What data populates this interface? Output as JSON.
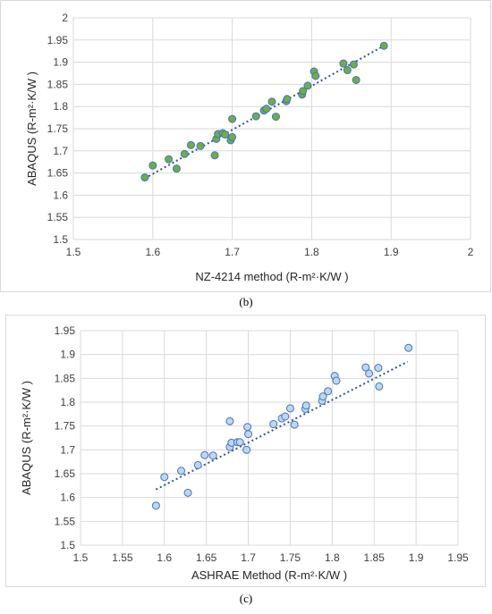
{
  "chart_data": [
    {
      "type": "scatter",
      "caption": "(b)",
      "xlabel": "NZ-4214 method (R-m²·K/W )",
      "ylabel": "ABAQUS (R-m²·K/W )",
      "xlim": [
        1.5,
        2
      ],
      "ylim": [
        1.5,
        2
      ],
      "xticks": [
        "1.5",
        "1.6",
        "1.7",
        "1.8",
        "1.9",
        "2"
      ],
      "yticks": [
        "1.5",
        "1.55",
        "1.6",
        "1.65",
        "1.7",
        "1.75",
        "1.8",
        "1.85",
        "1.9",
        "1.95",
        "2"
      ],
      "grid": true,
      "marker_fill": "#70ad47",
      "marker_edge": "#4472c4",
      "trendline_color": "#2f5597",
      "trendline": {
        "x": [
          1.59,
          1.89
        ],
        "y": [
          1.638,
          1.936
        ]
      },
      "points": [
        {
          "x": 1.59,
          "y": 1.64
        },
        {
          "x": 1.6,
          "y": 1.667
        },
        {
          "x": 1.62,
          "y": 1.681
        },
        {
          "x": 1.63,
          "y": 1.66
        },
        {
          "x": 1.64,
          "y": 1.693
        },
        {
          "x": 1.648,
          "y": 1.713
        },
        {
          "x": 1.66,
          "y": 1.711
        },
        {
          "x": 1.678,
          "y": 1.69
        },
        {
          "x": 1.68,
          "y": 1.727
        },
        {
          "x": 1.682,
          "y": 1.738
        },
        {
          "x": 1.688,
          "y": 1.74
        },
        {
          "x": 1.691,
          "y": 1.737
        },
        {
          "x": 1.698,
          "y": 1.724
        },
        {
          "x": 1.7,
          "y": 1.772
        },
        {
          "x": 1.7,
          "y": 1.731
        },
        {
          "x": 1.73,
          "y": 1.778
        },
        {
          "x": 1.74,
          "y": 1.791
        },
        {
          "x": 1.743,
          "y": 1.795
        },
        {
          "x": 1.75,
          "y": 1.811
        },
        {
          "x": 1.755,
          "y": 1.777
        },
        {
          "x": 1.768,
          "y": 1.812
        },
        {
          "x": 1.769,
          "y": 1.817
        },
        {
          "x": 1.788,
          "y": 1.827
        },
        {
          "x": 1.789,
          "y": 1.835
        },
        {
          "x": 1.795,
          "y": 1.847
        },
        {
          "x": 1.803,
          "y": 1.879
        },
        {
          "x": 1.805,
          "y": 1.869
        },
        {
          "x": 1.84,
          "y": 1.897
        },
        {
          "x": 1.845,
          "y": 1.882
        },
        {
          "x": 1.853,
          "y": 1.895
        },
        {
          "x": 1.856,
          "y": 1.86
        },
        {
          "x": 1.891,
          "y": 1.937
        }
      ]
    },
    {
      "type": "scatter",
      "caption": "(c)",
      "xlabel": "ASHRAE Method (R-m²·K/W )",
      "ylabel": "ABAQUS (R-m²·K/W )",
      "xlim": [
        1.5,
        1.95
      ],
      "ylim": [
        1.5,
        1.95
      ],
      "xticks": [
        "1.5",
        "1.55",
        "1.6",
        "1.65",
        "1.7",
        "1.75",
        "1.8",
        "1.85",
        "1.9",
        "1.95"
      ],
      "yticks": [
        "1.5",
        "1.55",
        "1.6",
        "1.65",
        "1.7",
        "1.75",
        "1.8",
        "1.85",
        "1.9",
        "1.95"
      ],
      "grid": true,
      "marker_fill": "#bdd7ee",
      "marker_edge": "#4472c4",
      "trendline_color": "#2f5597",
      "trendline": {
        "x": [
          1.59,
          1.89
        ],
        "y": [
          1.617,
          1.885
        ]
      },
      "points": [
        {
          "x": 1.59,
          "y": 1.583
        },
        {
          "x": 1.6,
          "y": 1.643
        },
        {
          "x": 1.62,
          "y": 1.656
        },
        {
          "x": 1.628,
          "y": 1.61
        },
        {
          "x": 1.64,
          "y": 1.668
        },
        {
          "x": 1.648,
          "y": 1.689
        },
        {
          "x": 1.658,
          "y": 1.688
        },
        {
          "x": 1.678,
          "y": 1.76
        },
        {
          "x": 1.678,
          "y": 1.706
        },
        {
          "x": 1.68,
          "y": 1.715
        },
        {
          "x": 1.687,
          "y": 1.716
        },
        {
          "x": 1.69,
          "y": 1.716
        },
        {
          "x": 1.698,
          "y": 1.7
        },
        {
          "x": 1.699,
          "y": 1.748
        },
        {
          "x": 1.7,
          "y": 1.733
        },
        {
          "x": 1.73,
          "y": 1.754
        },
        {
          "x": 1.74,
          "y": 1.766
        },
        {
          "x": 1.744,
          "y": 1.77
        },
        {
          "x": 1.75,
          "y": 1.787
        },
        {
          "x": 1.755,
          "y": 1.753
        },
        {
          "x": 1.768,
          "y": 1.786
        },
        {
          "x": 1.769,
          "y": 1.793
        },
        {
          "x": 1.788,
          "y": 1.803
        },
        {
          "x": 1.789,
          "y": 1.812
        },
        {
          "x": 1.795,
          "y": 1.823
        },
        {
          "x": 1.803,
          "y": 1.855
        },
        {
          "x": 1.805,
          "y": 1.845
        },
        {
          "x": 1.84,
          "y": 1.873
        },
        {
          "x": 1.844,
          "y": 1.86
        },
        {
          "x": 1.855,
          "y": 1.872
        },
        {
          "x": 1.856,
          "y": 1.833
        },
        {
          "x": 1.891,
          "y": 1.914
        }
      ]
    }
  ]
}
